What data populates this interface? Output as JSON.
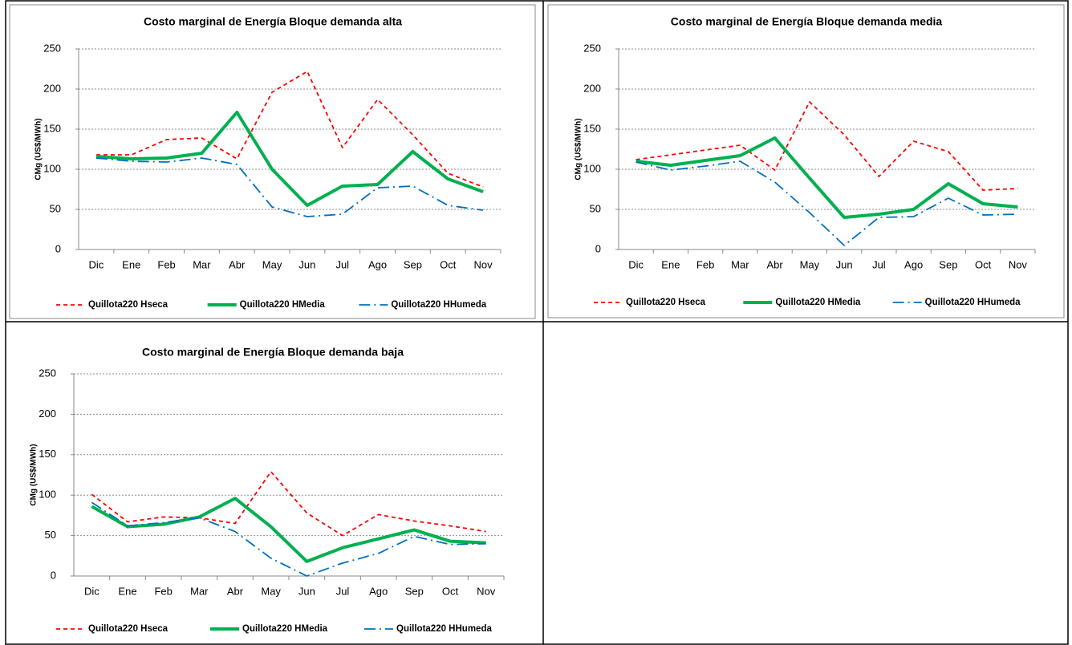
{
  "chart_data": [
    {
      "type": "line",
      "title": "Costo marginal de Energía  Bloque demanda alta",
      "ylabel": "CMg (US$/MWh)",
      "categories": [
        "Dic",
        "Ene",
        "Feb",
        "Mar",
        "Abr",
        "May",
        "Jun",
        "Jul",
        "Ago",
        "Sep",
        "Oct",
        "Nov"
      ],
      "ylim": [
        0,
        250
      ],
      "yticks": [
        0,
        50,
        100,
        150,
        200,
        250
      ],
      "grid": true,
      "legend": "bottom",
      "series": [
        {
          "name": "Quillota220 Hseca",
          "color": "#ff0000",
          "values": [
            118,
            118,
            137,
            139,
            113,
            196,
            222,
            127,
            187,
            143,
            95,
            78
          ]
        },
        {
          "name": "Quillota220 HMedia",
          "color": "#00b050",
          "values": [
            116,
            113,
            114,
            120,
            171,
            100,
            55,
            79,
            81,
            122,
            88,
            72
          ]
        },
        {
          "name": "Quillota220 HHumeda",
          "color": "#0070c0",
          "values": [
            114,
            110,
            109,
            114,
            106,
            53,
            41,
            44,
            77,
            79,
            55,
            49
          ]
        }
      ]
    },
    {
      "type": "line",
      "title": "Costo marginal de Energía  Bloque demanda media",
      "ylabel": "CMg (US$/MWh)",
      "categories": [
        "Dic",
        "Ene",
        "Feb",
        "Mar",
        "Abr",
        "May",
        "Jun",
        "Jul",
        "Ago",
        "Sep",
        "Oct",
        "Nov"
      ],
      "ylim": [
        0,
        250
      ],
      "yticks": [
        0,
        50,
        100,
        150,
        200,
        250
      ],
      "grid": true,
      "legend": "bottom",
      "series": [
        {
          "name": "Quillota220 Hseca",
          "color": "#ff0000",
          "values": [
            112,
            118,
            124,
            130,
            99,
            184,
            143,
            91,
            135,
            122,
            74,
            76
          ]
        },
        {
          "name": "Quillota220 HMedia",
          "color": "#00b050",
          "values": [
            110,
            105,
            111,
            117,
            139,
            89,
            40,
            44,
            50,
            82,
            57,
            53
          ]
        },
        {
          "name": "Quillota220 HHumeda",
          "color": "#0070c0",
          "values": [
            109,
            99,
            104,
            110,
            84,
            46,
            5,
            40,
            41,
            64,
            43,
            44
          ]
        }
      ]
    },
    {
      "type": "line",
      "title": "Costo marginal de Energía  Bloque demanda baja",
      "ylabel": "CMg (US$/MWh)",
      "categories": [
        "Dic",
        "Ene",
        "Feb",
        "Mar",
        "Abr",
        "May",
        "Jun",
        "Jul",
        "Ago",
        "Sep",
        "Oct",
        "Nov"
      ],
      "ylim": [
        0,
        250
      ],
      "yticks": [
        0,
        50,
        100,
        150,
        200,
        250
      ],
      "grid": true,
      "legend": "bottom",
      "series": [
        {
          "name": "Quillota220 Hseca",
          "color": "#ff0000",
          "values": [
            101,
            67,
            73,
            72,
            65,
            129,
            78,
            50,
            76,
            68,
            62,
            55
          ]
        },
        {
          "name": "Quillota220 HMedia",
          "color": "#00b050",
          "values": [
            86,
            61,
            64,
            73,
            96,
            61,
            18,
            35,
            46,
            57,
            43,
            41
          ]
        },
        {
          "name": "Quillota220 HHumeda",
          "color": "#0070c0",
          "values": [
            91,
            62,
            66,
            72,
            55,
            22,
            0,
            16,
            28,
            49,
            39,
            40
          ]
        }
      ]
    }
  ]
}
